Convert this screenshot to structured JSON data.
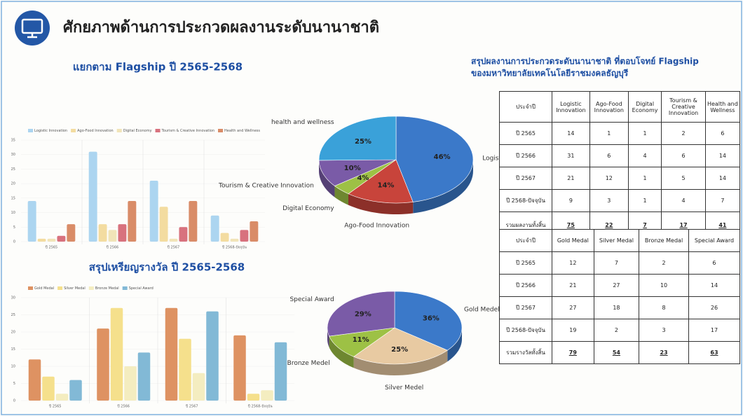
{
  "title": "ศักยภาพด้านการประกวดผลงานระดับนานาชาติ",
  "table_heading": [
    "สรุปผลงานการประกวดระดับนานาชาติ ที่ตอบโจทย์ Flagship",
    "ของมหาวิทยาลัยเทคโนโลยีราชมงคลธัญบุรี"
  ],
  "chart_data": [
    {
      "type": "bar",
      "title": "แยกตาม Flagship ปี 2565-2568",
      "categories": [
        "ปี 2565",
        "ปี 2566",
        "ปี 2567",
        "ปี 2568-ปัจจุบัน"
      ],
      "series": [
        {
          "name": "Logistic Innovation",
          "color": "#acd5f0",
          "values": [
            14,
            31,
            21,
            9
          ]
        },
        {
          "name": "Ago-Food Innovation",
          "color": "#f3dca0",
          "values": [
            1,
            6,
            12,
            3
          ]
        },
        {
          "name": "Digital Economy",
          "color": "#f1e4b8",
          "values": [
            1,
            4,
            1,
            1
          ]
        },
        {
          "name": "Tourism & Creative Innovation",
          "color": "#d8727e",
          "values": [
            2,
            6,
            5,
            4
          ]
        },
        {
          "name": "Health and Wellness",
          "color": "#d98c68",
          "values": [
            6,
            14,
            14,
            7
          ]
        }
      ],
      "ylim": [
        0,
        35
      ],
      "yticks": [
        0,
        5,
        10,
        15,
        20,
        25,
        30,
        35
      ],
      "legend": "top"
    },
    {
      "type": "pie",
      "categories": [
        "Logistic Innovation",
        "Ago-Food Innovation",
        "Digital Economy",
        "Tourism & Creative Innovation",
        "health and wellness"
      ],
      "values": [
        46,
        14,
        4,
        10,
        25
      ],
      "value_labels": [
        "46%",
        "14%",
        "4%",
        "10%",
        "25%"
      ],
      "colors": [
        "#3b79c9",
        "#c8443b",
        "#9dc145",
        "#7a5ba7",
        "#3aa1d9"
      ]
    },
    {
      "type": "bar",
      "title": "สรุปเหรียญรางวัล ปี 2565-2568",
      "categories": [
        "ปี 2565",
        "ปี 2566",
        "ปี 2567",
        "ปี 2568-ปัจจุบัน"
      ],
      "series": [
        {
          "name": "Gold Medal",
          "color": "#de9262",
          "values": [
            12,
            21,
            27,
            19
          ]
        },
        {
          "name": "Silver Medal",
          "color": "#f5e08c",
          "values": [
            7,
            27,
            18,
            2
          ]
        },
        {
          "name": "Bronze Medal",
          "color": "#f4edc0",
          "values": [
            2,
            10,
            8,
            3
          ]
        },
        {
          "name": "Special Award",
          "color": "#82b9d6",
          "values": [
            6,
            14,
            26,
            17
          ]
        }
      ],
      "ylim": [
        0,
        30
      ],
      "yticks": [
        0,
        5,
        10,
        15,
        20,
        25,
        30
      ],
      "legend": "top"
    },
    {
      "type": "pie",
      "categories": [
        "Gold Medel",
        "Silver Medel",
        "Bronze Medel",
        "Special Award"
      ],
      "values": [
        36,
        25,
        11,
        29
      ],
      "value_labels": [
        "36%",
        "25%",
        "11%",
        "29%"
      ],
      "colors": [
        "#3b79c9",
        "#e8caa2",
        "#9dc145",
        "#7a5ba7"
      ]
    }
  ],
  "tables": [
    {
      "header": [
        "ประจำปี",
        "Logistic Innovation",
        "Ago-Food Innovation",
        "Digital Economy",
        "Tourism & Creative Innovation",
        "Health and Wellness"
      ],
      "rows": [
        [
          "ปี 2565",
          14,
          1,
          1,
          2,
          6
        ],
        [
          "ปี 2566",
          31,
          6,
          4,
          6,
          14
        ],
        [
          "ปี 2567",
          21,
          12,
          1,
          5,
          14
        ],
        [
          "ปี 2568-ปัจจุบัน",
          9,
          3,
          1,
          4,
          7
        ],
        [
          "รวมผลงานทั้งสิ้น",
          75,
          22,
          7,
          17,
          41
        ]
      ]
    },
    {
      "header": [
        "ประจำปี",
        "Gold Medal",
        "Silver Medal",
        "Bronze Medal",
        "Special Award"
      ],
      "rows": [
        [
          "ปี 2565",
          12,
          7,
          2,
          6
        ],
        [
          "ปี 2566",
          21,
          27,
          10,
          14
        ],
        [
          "ปี 2567",
          27,
          18,
          8,
          26
        ],
        [
          "ปี 2568-ปัจจุบัน",
          19,
          2,
          3,
          17
        ],
        [
          "รวมรางวัลทั้งสิ้น",
          79,
          54,
          23,
          63
        ]
      ]
    }
  ]
}
